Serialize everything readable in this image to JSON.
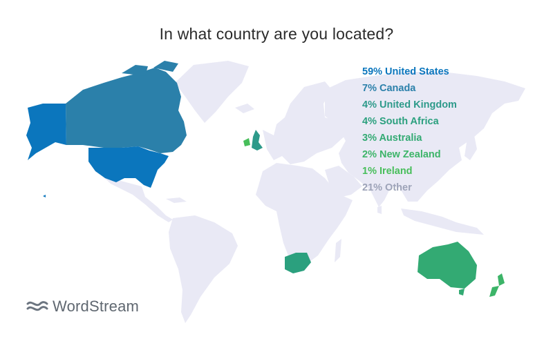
{
  "title": "In what country are you located?",
  "legend": [
    {
      "label": "59% United States",
      "color": "#0b76bd"
    },
    {
      "label": "7% Canada",
      "color": "#2b80aa"
    },
    {
      "label": "4% United Kingdom",
      "color": "#2d9a8a"
    },
    {
      "label": "4% South Africa",
      "color": "#2ba07e"
    },
    {
      "label": "3% Australia",
      "color": "#33aa73"
    },
    {
      "label": "2% New Zealand",
      "color": "#3cb468"
    },
    {
      "label": "1% Ireland",
      "color": "#47be5a"
    },
    {
      "label": "21% Other",
      "color": "#9da3b8"
    }
  ],
  "colors": {
    "land": "#e9e9f5",
    "united_states": "#0b76bd",
    "canada": "#2b80aa",
    "united_kingdom": "#2d9a8a",
    "south_africa": "#2ba07e",
    "australia": "#33aa73",
    "new_zealand": "#3cb468",
    "ireland": "#47be5a"
  },
  "brand": {
    "name": "WordStream",
    "icon": "wordstream-waves-logo-icon"
  }
}
